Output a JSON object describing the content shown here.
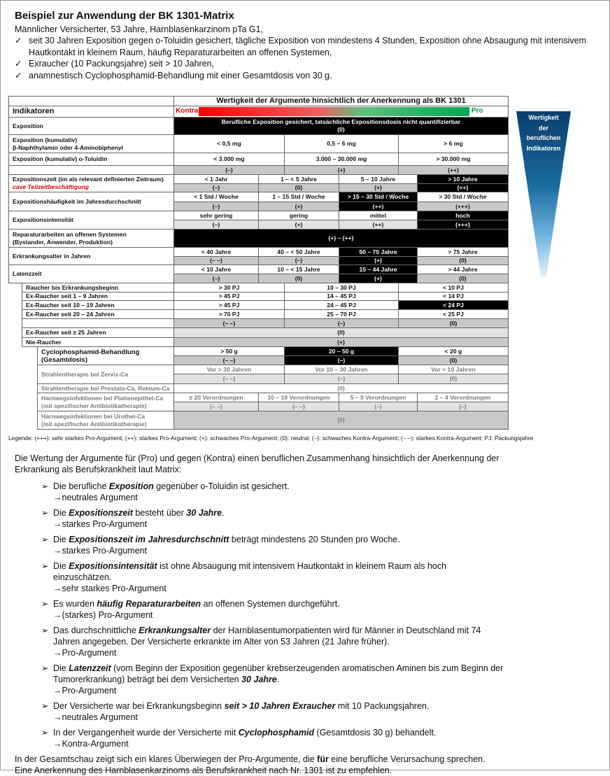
{
  "header": {
    "title": "Beispiel zur Anwendung der BK 1301-Matrix",
    "subtitle": "Männlicher Versicherter, 53 Jahre, Harnblasenkarzinom pTa G1,",
    "check_icon": "✓",
    "checks": [
      "seit 30 Jahren Exposition gegen o-Toluidin gesichert, tägliche Exposition von mindestens 4 Stunden, Exposition ohne Absaugung mit intensivem Hautkontakt in kleinem Raum, häufig Reparaturarbeiten an offenen Systemen,",
      "Exraucher (10 Packungsjahre) seit > 10 Jahren,",
      "anamnestisch Cyclophosphamid-Behandlung mit einer Gesamtdosis von 30 g."
    ]
  },
  "table": {
    "header": "Wertigkeit der Argumente hinsichtlich der Anerkennung als BK 1301",
    "indikatoren": "Indikatoren",
    "kontra": "Kontra",
    "pro": "Pro",
    "colors": {
      "kontra": "#e00000",
      "pro": "#00a040",
      "highlight": "#000000"
    },
    "exposition": {
      "label": "Exposition",
      "text": "Berufliche Exposition gesichert, tatsächliche Expositionsdosis nicht quantifizierbar",
      "rating": "(0)"
    },
    "naphthyl": {
      "label": "Exposition (kumulativ)",
      "label2": "β-Naphthylamin oder 4-Aminobiphenyl",
      "values": [
        "< 0,5 mg",
        "0,5 – 6 mg",
        "> 6 mg"
      ]
    },
    "toluidin": {
      "label": "Exposition (kumulativ) o-Toluidin",
      "values": [
        "< 3.000 mg",
        "3.000 – 30.000 mg",
        "> 30.000 mg"
      ],
      "ratings": [
        "(–)",
        "(+)",
        "(++)"
      ]
    },
    "zeit": {
      "label": "Expositionszeit (im als relevant definierten Zeitraum)",
      "note": "cave Teilzeitbeschäftigung",
      "values": [
        "< 1 Jahr",
        "1 – < 5 Jahre",
        "5 – 10 Jahre",
        "> 10 Jahre"
      ],
      "ratings": [
        "(–)",
        "(0)",
        "(+)",
        "(++)"
      ],
      "highlight": 3
    },
    "haeufigkeit": {
      "label": "Expositionshäufigkeit im Jahresdurchschnitt",
      "values": [
        "< 1 Std / Woche",
        "1 – 15 Std / Woche",
        "> 15 – 30 Std / Woche",
        "> 30 Std / Woche"
      ],
      "ratings": [
        "(–)",
        "(+)",
        "(++)",
        "(+++)"
      ],
      "highlight": 2
    },
    "intensitaet": {
      "label": "Expositionsintensität",
      "values": [
        "sehr gering",
        "gering",
        "mittel",
        "hoch"
      ],
      "ratings": [
        "(–)",
        "(+)",
        "(++)",
        "(+++)"
      ],
      "highlight": 3
    },
    "reparatur": {
      "label": "Reparaturarbeiten an offenen Systemen",
      "label2": "(Bystander, Anwender, Produktion)",
      "rating": "(+) – (++)"
    },
    "alter": {
      "label": "Erkrankungsalter in Jahren",
      "values": [
        "< 40 Jahre",
        "40 – < 50 Jahre",
        "50 – 75 Jahre",
        "> 75 Jahre"
      ],
      "ratings": [
        "(– –)",
        "(–)",
        "(+)",
        "(0)"
      ],
      "highlight": 2
    },
    "latenz": {
      "label": "Latenzzeit",
      "values": [
        "< 10 Jahre",
        "10 – < 15 Jahre",
        "15 – 44 Jahre",
        "> 44 Jahre"
      ],
      "ratings": [
        "(–)",
        "(0)",
        "(+)",
        "(0)"
      ],
      "highlight": 2
    },
    "smoking": {
      "rows": [
        {
          "label": "Raucher bis Erkrankungsbeginn",
          "values": [
            "> 30 PJ",
            "10 – 30 PJ",
            "< 10 PJ"
          ]
        },
        {
          "label": "Ex-Raucher seit 1 – 9 Jahren",
          "values": [
            "> 45 PJ",
            "14 – 45 PJ",
            "< 14 PJ"
          ]
        },
        {
          "label": "Ex-Raucher seit 10 – 19 Jahren",
          "values": [
            "> 45 PJ",
            "24 – 45 PJ",
            "< 24 PJ"
          ],
          "highlight": 2
        },
        {
          "label": "Ex-Raucher seit 20 – 24 Jahren",
          "values": [
            "> 70 PJ",
            "25 – 70 PJ",
            "< 25 PJ"
          ]
        }
      ],
      "ratings": [
        "(– –)",
        "(–)",
        "(0)"
      ],
      "ex25": {
        "label": "Ex-Raucher seit ≥ 25 Jahren",
        "rating": "(0)"
      },
      "nie": {
        "label": "Nie-Raucher",
        "rating": "(+)"
      }
    },
    "cyclo": {
      "label": "Cyclophosphamid-Behandlung",
      "label2": "(Gesamtdosis)",
      "values": [
        "> 50 g",
        "20 – 50 g",
        "< 20 g"
      ],
      "ratings": [
        "(– –)",
        "(–)",
        "(0)"
      ],
      "highlight": 1
    },
    "zervix": {
      "label": "Strahlentherapie bei Zervix-Ca",
      "values": [
        "Vor > 30 Jahren",
        "Vor 10 – 30 Jahren",
        "Vor < 10 Jahren"
      ],
      "ratings": [
        "(– –)",
        "(–)",
        "(0)"
      ]
    },
    "prostata": {
      "label": "Strahlentherapie bei Prostata-Ca, Rektum-Ca",
      "rating": "(0)"
    },
    "platten": {
      "label": "Harnwegsinfektionen bei Plattenepithel-Ca",
      "label2": "(mit spezifischer Antibiotikatherapie)",
      "values": [
        "≥ 20 Verordnungen",
        "10 – 19 Verordnungen",
        "5 – 9 Verordnungen",
        "2 – 4 Verordnungen"
      ],
      "ratings": [
        "(– –)",
        "(– –)",
        "(–)",
        "(–)"
      ]
    },
    "urothel": {
      "label": "Harnwegsinfektionen bei Urothel-Ca",
      "label2": "(mit spezifischer Antibiotikatherapie)",
      "rating": "(0)"
    }
  },
  "pyramid": {
    "lines": [
      "Wertigkeit",
      "der",
      "beruflichen",
      "Indikatoren"
    ]
  },
  "legend": "Legende: (+++): sehr starkes Pro-Argument; (++): starkes Pro-Argument; (+): schwaches Pro-Argument; (0): neutral; (–): schwaches Kontra-Argument; (– –): starkes Kontra-Argument; PJ: Packungsjahre",
  "body": {
    "intro": "Die Wertung der Argumente für (Pro) und gegen (Kontra) einen beruflichen Zusammenhang hinsichtlich der Anerkennung der Erkrankung als Berufskrankheit laut Matrix:",
    "bullet_icon": "➢",
    "arrow_icon": "→",
    "items": [
      {
        "seg": [
          {
            "t": "Die berufliche "
          },
          {
            "t": "Exposition",
            "b": true
          },
          {
            "t": " gegenüber o-Toluidin ist gesichert."
          }
        ],
        "result": "neutrales Argument"
      },
      {
        "seg": [
          {
            "t": "Die "
          },
          {
            "t": "Expositionszeit",
            "b": true
          },
          {
            "t": " besteht über "
          },
          {
            "t": "30 Jahre",
            "b": true
          },
          {
            "t": "."
          }
        ],
        "result": "starkes Pro-Argument"
      },
      {
        "seg": [
          {
            "t": "Die "
          },
          {
            "t": "Expositionszeit im Jahresdurchschnitt",
            "b": true
          },
          {
            "t": " beträgt mindestens 20 Stunden pro Woche."
          }
        ],
        "result": "starkes Pro-Argument"
      },
      {
        "seg": [
          {
            "t": "Die "
          },
          {
            "t": "Expositionsintensität",
            "b": true
          },
          {
            "t": " ist ohne Absaugung mit intensivem Hautkontakt in kleinem Raum als hoch einzuschätzen."
          }
        ],
        "result": "sehr starkes Pro-Argument"
      },
      {
        "seg": [
          {
            "t": "Es wurden "
          },
          {
            "t": "häufig Reparaturarbeiten",
            "b": true
          },
          {
            "t": " an offenen Systemen durchgeführt."
          }
        ],
        "result": "(starkes) Pro-Argument"
      },
      {
        "seg": [
          {
            "t": "Das durchschnittliche "
          },
          {
            "t": "Erkrankungsalter",
            "b": true
          },
          {
            "t": " der Harnblasentumorpatienten wird für Männer in Deutschland mit 74 Jahren angegeben. Der Versicherte erkrankte im Alter von 53 Jahren (21 Jahre früher)."
          }
        ],
        "result": "Pro-Argument"
      },
      {
        "seg": [
          {
            "t": "Die "
          },
          {
            "t": "Latenzzeit",
            "b": true
          },
          {
            "t": " (vom Beginn der Exposition gegenüber krebserzeugenden aromatischen Aminen bis zum Beginn der Tumorerkrankung) beträgt bei dem Versicherten "
          },
          {
            "t": "30 Jahre",
            "b": true
          },
          {
            "t": "."
          }
        ],
        "result": "Pro-Argument"
      },
      {
        "seg": [
          {
            "t": "Der Versicherte war bei Erkrankungsbeginn "
          },
          {
            "t": "seit > 10 Jahren Exraucher",
            "b": true
          },
          {
            "t": " mit 10 Packungsjahren."
          }
        ],
        "result": "neutrales Argument"
      },
      {
        "seg": [
          {
            "t": "In der Vergangenheit wurde der Versicherte mit "
          },
          {
            "t": "Cyclophosphamid",
            "b": true
          },
          {
            "t": " (Gesamtdosis 30 g) behandelt."
          }
        ],
        "result": "Kontra-Argument"
      }
    ],
    "final_pre": "In der Gesamtschau zeigt sich ein klares Überwiegen der Pro-Argumente, die ",
    "final_bold": "für",
    "final_post": " eine berufliche Verursachung sprechen. Eine Anerkennung des Harnblasenkarzinoms als Berufskrankheit nach Nr. 1301 ist zu empfehlen."
  }
}
